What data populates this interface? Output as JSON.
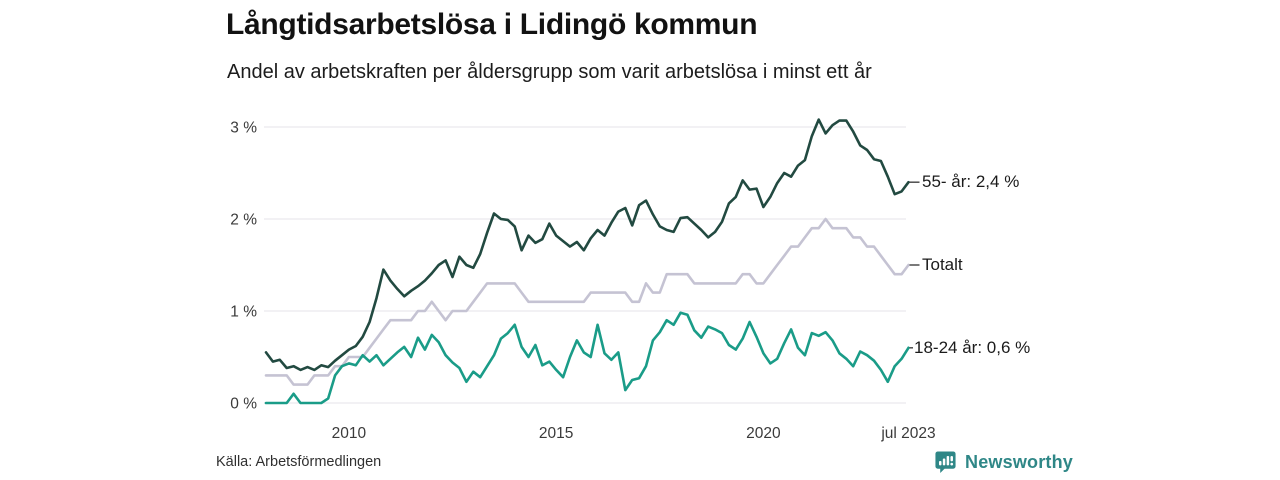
{
  "header": {
    "title": "Långtidsarbetslösa i Lidingö kommun",
    "subtitle": "Andel av arbetskraften per åldersgrupp som varit arbetslösa i minst ett år"
  },
  "source": {
    "label": "Källa: Arbetsförmedlingen"
  },
  "branding": {
    "name": "Newsworthy",
    "color": "#2f8787"
  },
  "chart_data": {
    "type": "line",
    "title": "Långtidsarbetslösa i Lidingö kommun",
    "subtitle": "Andel av arbetskraften per åldersgrupp som varit arbetslösa i minst ett år",
    "xlabel": "",
    "ylabel": "",
    "unit": "%",
    "grid": "horizontal",
    "legend_position": "right-end-labels",
    "xlim": [
      2008,
      2023.5
    ],
    "ylim": [
      0,
      3.3
    ],
    "x_start": 2008.0,
    "x_step": 0.16667,
    "x_note": "monthly share sampled every 2 months, Jan 2008 - Jul 2023",
    "x_ticks": [
      {
        "label": "2010",
        "t": 2010
      },
      {
        "label": "2015",
        "t": 2015
      },
      {
        "label": "2020",
        "t": 2020
      },
      {
        "label": "jul 2023",
        "t": 2023.5
      }
    ],
    "y_ticks": [
      {
        "label": "0 %",
        "v": 0
      },
      {
        "label": "1 %",
        "v": 1
      },
      {
        "label": "2 %",
        "v": 2
      },
      {
        "label": "3 %",
        "v": 3
      }
    ],
    "gridline_color": "#e4e3e8",
    "series": [
      {
        "name": "55- år",
        "end_label": "55- år: 2,4 %",
        "last_value": 2.4,
        "color": "#224a41",
        "values": [
          0.55,
          0.45,
          0.47,
          0.38,
          0.4,
          0.36,
          0.39,
          0.36,
          0.41,
          0.39,
          0.46,
          0.52,
          0.58,
          0.62,
          0.72,
          0.88,
          1.14,
          1.45,
          1.33,
          1.24,
          1.16,
          1.22,
          1.27,
          1.33,
          1.41,
          1.5,
          1.55,
          1.37,
          1.59,
          1.5,
          1.47,
          1.62,
          1.85,
          2.06,
          2.0,
          1.99,
          1.92,
          1.66,
          1.82,
          1.74,
          1.78,
          1.95,
          1.82,
          1.76,
          1.7,
          1.75,
          1.66,
          1.79,
          1.88,
          1.82,
          1.96,
          2.08,
          2.12,
          1.93,
          2.15,
          2.2,
          2.05,
          1.92,
          1.88,
          1.86,
          2.01,
          2.02,
          1.95,
          1.88,
          1.8,
          1.86,
          1.97,
          2.17,
          2.24,
          2.42,
          2.32,
          2.33,
          2.13,
          2.24,
          2.39,
          2.5,
          2.46,
          2.58,
          2.64,
          2.9,
          3.08,
          2.93,
          3.02,
          3.07,
          3.07,
          2.95,
          2.8,
          2.75,
          2.65,
          2.63,
          2.46,
          2.27,
          2.3,
          2.4
        ]
      },
      {
        "name": "Totalt",
        "end_label": "Totalt",
        "last_value": 1.5,
        "color": "#c5c3d3",
        "values": [
          0.3,
          0.3,
          0.3,
          0.3,
          0.2,
          0.2,
          0.2,
          0.3,
          0.3,
          0.3,
          0.4,
          0.4,
          0.5,
          0.5,
          0.5,
          0.6,
          0.7,
          0.8,
          0.9,
          0.9,
          0.9,
          0.9,
          1.0,
          1.0,
          1.1,
          1.0,
          0.9,
          1.0,
          1.0,
          1.0,
          1.1,
          1.2,
          1.3,
          1.3,
          1.3,
          1.3,
          1.3,
          1.2,
          1.1,
          1.1,
          1.1,
          1.1,
          1.1,
          1.1,
          1.1,
          1.1,
          1.1,
          1.2,
          1.2,
          1.2,
          1.2,
          1.2,
          1.2,
          1.1,
          1.1,
          1.3,
          1.2,
          1.2,
          1.4,
          1.4,
          1.4,
          1.4,
          1.3,
          1.3,
          1.3,
          1.3,
          1.3,
          1.3,
          1.3,
          1.4,
          1.4,
          1.3,
          1.3,
          1.4,
          1.5,
          1.6,
          1.7,
          1.7,
          1.8,
          1.9,
          1.9,
          2.0,
          1.9,
          1.9,
          1.9,
          1.8,
          1.8,
          1.7,
          1.7,
          1.6,
          1.5,
          1.4,
          1.4,
          1.5
        ]
      },
      {
        "name": "18-24 år",
        "end_label": "18-24 år: 0,6 %",
        "last_value": 0.6,
        "color": "#1a9c88",
        "values": [
          0.0,
          0.0,
          0.0,
          0.0,
          0.1,
          0.0,
          0.0,
          0.0,
          0.0,
          0.05,
          0.3,
          0.4,
          0.43,
          0.41,
          0.52,
          0.45,
          0.52,
          0.41,
          0.48,
          0.55,
          0.61,
          0.5,
          0.71,
          0.58,
          0.74,
          0.66,
          0.52,
          0.44,
          0.38,
          0.23,
          0.34,
          0.28,
          0.4,
          0.52,
          0.7,
          0.76,
          0.85,
          0.61,
          0.5,
          0.63,
          0.41,
          0.45,
          0.36,
          0.28,
          0.5,
          0.68,
          0.55,
          0.5,
          0.85,
          0.54,
          0.47,
          0.55,
          0.14,
          0.25,
          0.27,
          0.4,
          0.68,
          0.77,
          0.9,
          0.85,
          0.98,
          0.96,
          0.79,
          0.71,
          0.83,
          0.8,
          0.76,
          0.63,
          0.58,
          0.7,
          0.88,
          0.72,
          0.54,
          0.43,
          0.48,
          0.65,
          0.8,
          0.6,
          0.52,
          0.76,
          0.73,
          0.77,
          0.68,
          0.54,
          0.48,
          0.4,
          0.56,
          0.52,
          0.46,
          0.36,
          0.23,
          0.4,
          0.48,
          0.6
        ]
      }
    ]
  }
}
